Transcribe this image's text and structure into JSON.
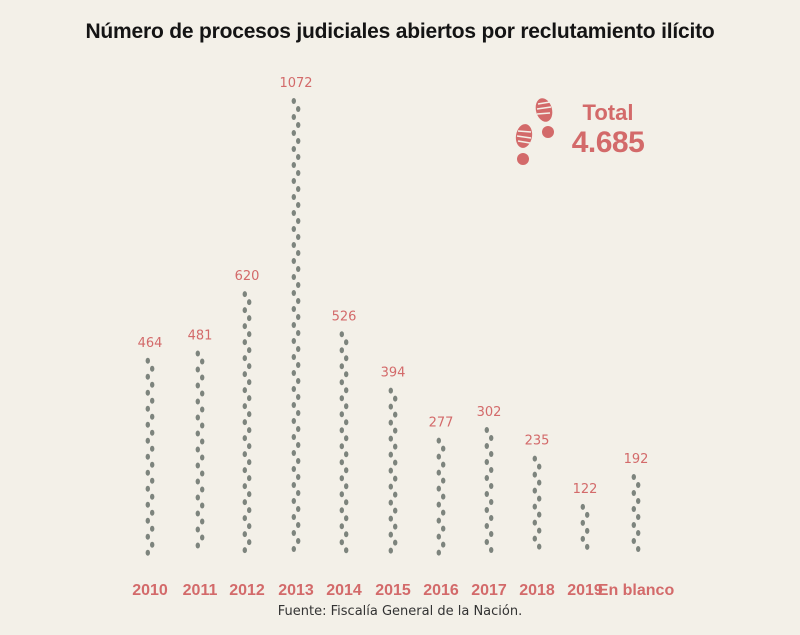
{
  "chart_data": {
    "type": "bar",
    "title": "Número de procesos judiciales abiertos por reclutamiento ilícito",
    "categories": [
      "2010",
      "2011",
      "2012",
      "2013",
      "2014",
      "2015",
      "2016",
      "2017",
      "2018",
      "2019",
      "En blanco"
    ],
    "values": [
      464,
      481,
      620,
      1072,
      526,
      394,
      277,
      302,
      235,
      122,
      192
    ],
    "value_labels": [
      "464",
      "481",
      "620",
      "1072",
      "526",
      "394",
      "277",
      "302",
      "235",
      "122",
      "192"
    ],
    "ylim": [
      0,
      1072
    ],
    "grid": false,
    "legend": "none",
    "colors": {
      "mark": "#7d847d",
      "label": "#d36a6a"
    }
  },
  "total": {
    "label": "Total",
    "value": "4.685",
    "icon": "footprints-icon"
  },
  "source": "Fuente: Fiscalía General de la Nación."
}
